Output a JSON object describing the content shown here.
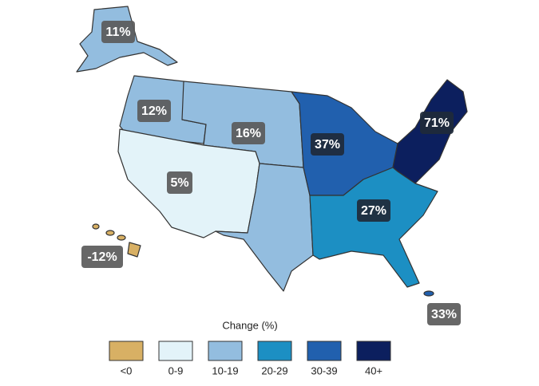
{
  "regions": [
    {
      "label": "11%",
      "color": "#93bddf"
    },
    {
      "label": "12%",
      "color": "#93bddf"
    },
    {
      "label": "16%",
      "color": "#93bddf"
    },
    {
      "label": "5%",
      "color": "#e3f3f9"
    },
    {
      "label": "37%",
      "color": "#2160ae"
    },
    {
      "label": "71%",
      "color": "#0c1f5e"
    },
    {
      "label": "27%",
      "color": "#1c8fc3"
    },
    {
      "label": "-12%",
      "color": "#d8b064"
    },
    {
      "label": "33%",
      "color": "#2160ae"
    }
  ],
  "south_plains_color": "#93bddf",
  "legend": {
    "title": "Change (%)",
    "items": [
      {
        "label": "<0",
        "color": "#d8b064"
      },
      {
        "label": "0-9",
        "color": "#e3f3f9"
      },
      {
        "label": "10-19",
        "color": "#93bddf"
      },
      {
        "label": "20-29",
        "color": "#1c8fc3"
      },
      {
        "label": "30-39",
        "color": "#2160ae"
      },
      {
        "label": "40+",
        "color": "#0c1f5e"
      }
    ]
  }
}
